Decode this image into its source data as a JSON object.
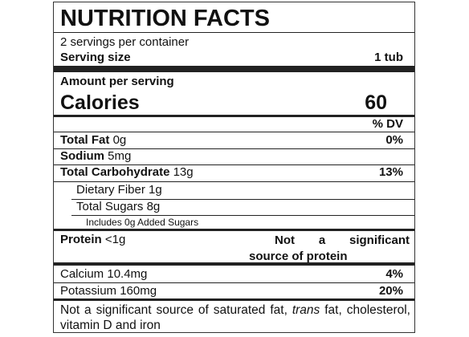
{
  "title": "NUTRITION FACTS",
  "servings": "2 servings per container",
  "serving_size": {
    "label": "Serving size",
    "value": "1 tub"
  },
  "amount_per_serving": "Amount per serving",
  "calories": {
    "label": "Calories",
    "value": "60"
  },
  "dv_header": "% DV",
  "nutrients": [
    {
      "name": "Total Fat",
      "amount": "0g",
      "dv": "0%"
    },
    {
      "name": "Sodium",
      "amount": "5mg"
    },
    {
      "name": "Total Carbohydrate",
      "amount": "13g",
      "dv": "13%"
    },
    {
      "name": "Dietary Fiber",
      "amount": "1g"
    },
    {
      "name": "Total Sugars",
      "amount": "8g"
    },
    {
      "name": "Includes 0g Added Sugars"
    }
  ],
  "protein": {
    "name": "Protein",
    "amount": "<1g",
    "note": "Not a significant source of protein"
  },
  "minerals": [
    {
      "name": "Calcium",
      "amount": "10.4mg",
      "dv": "4%"
    },
    {
      "name": "Potassium",
      "amount": "160mg",
      "dv": "20%"
    }
  ],
  "footnote": [
    "Not a significant source of saturated fat, ",
    "trans",
    " fat, cholesterol, vitamin D and iron"
  ]
}
